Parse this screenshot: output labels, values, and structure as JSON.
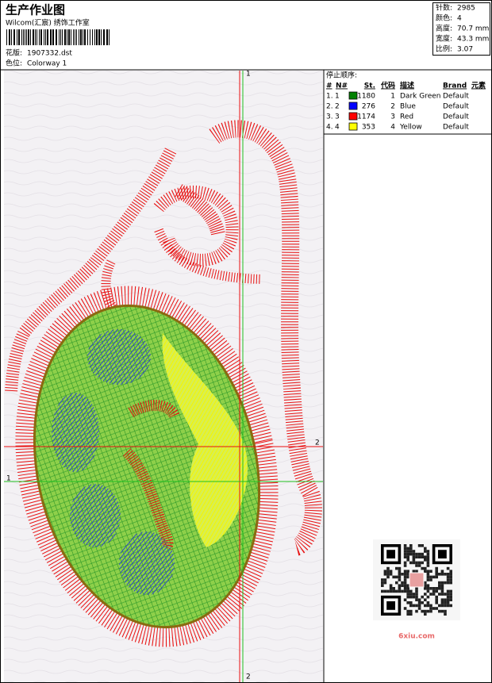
{
  "header": {
    "title": "生产作业图",
    "studio": "Wilcom(汇宸) 绣饰工作室",
    "design_label": "花版:",
    "design": "1907332.dst",
    "colorway_label": "色位:",
    "colorway": "Colorway 1"
  },
  "summary": [
    {
      "label": "针数:",
      "value": "2985"
    },
    {
      "label": "颜色:",
      "value": "4"
    },
    {
      "label": "高度:",
      "value": "70.7 mm"
    },
    {
      "label": "宽度:",
      "value": "43.3 mm"
    },
    {
      "label": "比例:",
      "value": "3.07"
    }
  ],
  "stop_sequence": {
    "title": "停止顺序:",
    "columns": [
      "#",
      "N#",
      "St.",
      "代码",
      "描述",
      "Brand",
      "元素"
    ],
    "rows": [
      {
        "index": "1.",
        "needle": 1,
        "color": "#008000",
        "stitches": 1180,
        "code": 1,
        "description": "Dark Green",
        "brand": "Default"
      },
      {
        "index": "2.",
        "needle": 2,
        "color": "#0000ff",
        "stitches": 276,
        "code": 2,
        "description": "Blue",
        "brand": "Default"
      },
      {
        "index": "3.",
        "needle": 3,
        "color": "#ff0000",
        "stitches": 1174,
        "code": 3,
        "description": "Red",
        "brand": "Default"
      },
      {
        "index": "4.",
        "needle": 4,
        "color": "#ffff00",
        "stitches": 353,
        "code": 4,
        "description": "Yellow",
        "brand": "Default"
      }
    ]
  },
  "guides": {
    "vertical_top": "1",
    "vertical_bottom": "2",
    "horizontal_red": "2",
    "horizontal_green": "1"
  },
  "watermark": "6xiu.com"
}
